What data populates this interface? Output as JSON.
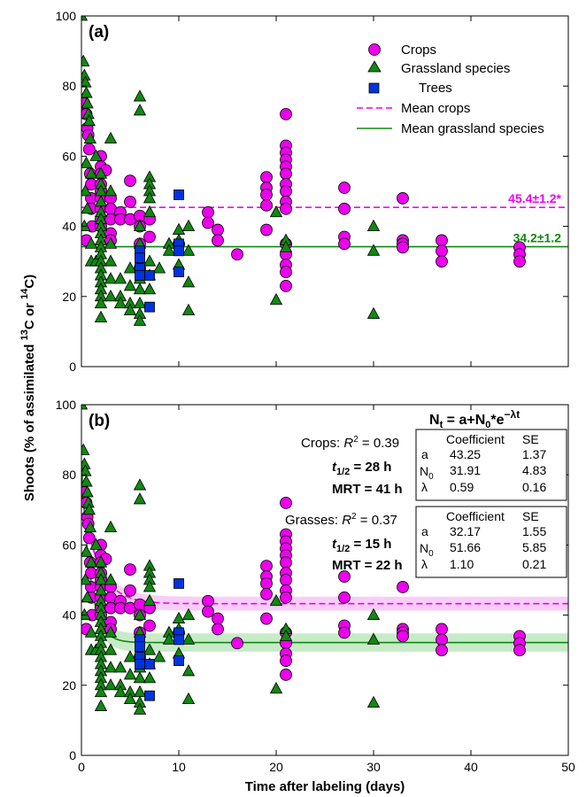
{
  "chart_data": [
    {
      "type": "scatter",
      "panel_label": "(a)",
      "ylabel": "Shoots (% of assimilated 13C or 14C)",
      "xlabel": "",
      "xlim": [
        0,
        50
      ],
      "ylim": [
        0,
        100
      ],
      "xticks": [],
      "yticks": [
        0,
        20,
        40,
        60,
        80,
        100
      ],
      "legend_position": "top-right",
      "legend": [
        {
          "label": "Crops",
          "symbol": "circle",
          "color": "#ee00ee"
        },
        {
          "label": "Grassland species",
          "symbol": "triangle",
          "color": "#118811"
        },
        {
          "label": "Trees",
          "symbol": "square",
          "color": "#0033dd"
        },
        {
          "label": "Mean crops",
          "symbol": "dashed-line",
          "color": "#ee00ee"
        },
        {
          "label": "Mean grassland species",
          "symbol": "solid-line",
          "color": "#118811"
        }
      ],
      "series": [
        {
          "name": "Crops",
          "points": [
            [
              0.3,
              75
            ],
            [
              0.5,
              72
            ],
            [
              0.6,
              68
            ],
            [
              0.7,
              66
            ],
            [
              0.8,
              62
            ],
            [
              0.9,
              55
            ],
            [
              1,
              52
            ],
            [
              1,
              48
            ],
            [
              1,
              45
            ],
            [
              1.1,
              40
            ],
            [
              0.5,
              36
            ],
            [
              2,
              60
            ],
            [
              2,
              57
            ],
            [
              2,
              55
            ],
            [
              2,
              52
            ],
            [
              2,
              50
            ],
            [
              2,
              48
            ],
            [
              2,
              45
            ],
            [
              2,
              42
            ],
            [
              2,
              40
            ],
            [
              2.5,
              56
            ],
            [
              3,
              48
            ],
            [
              3,
              45
            ],
            [
              3,
              42
            ],
            [
              3,
              38
            ],
            [
              3,
              36
            ],
            [
              4,
              44
            ],
            [
              4,
              42
            ],
            [
              5,
              53
            ],
            [
              5,
              47
            ],
            [
              5,
              42
            ],
            [
              6,
              43
            ],
            [
              6,
              40
            ],
            [
              6,
              35
            ],
            [
              6,
              28
            ],
            [
              7,
              42
            ],
            [
              7,
              37
            ],
            [
              10,
              35
            ],
            [
              13,
              44
            ],
            [
              13,
              41
            ],
            [
              14,
              39
            ],
            [
              14,
              36
            ],
            [
              16,
              32
            ],
            [
              19,
              54
            ],
            [
              19,
              51
            ],
            [
              19,
              49
            ],
            [
              19,
              46
            ],
            [
              19,
              39
            ],
            [
              21,
              72
            ],
            [
              21,
              63
            ],
            [
              21,
              61
            ],
            [
              21,
              59
            ],
            [
              21,
              57
            ],
            [
              21,
              55
            ],
            [
              21,
              52
            ],
            [
              21,
              50
            ],
            [
              21,
              47
            ],
            [
              21,
              45
            ],
            [
              21,
              35
            ],
            [
              21,
              32
            ],
            [
              21,
              29
            ],
            [
              21,
              27
            ],
            [
              21,
              23
            ],
            [
              27,
              51
            ],
            [
              27,
              45
            ],
            [
              27,
              37
            ],
            [
              27,
              35
            ],
            [
              33,
              48
            ],
            [
              33,
              36
            ],
            [
              33,
              35
            ],
            [
              33,
              34
            ],
            [
              37,
              36
            ],
            [
              37,
              33
            ],
            [
              37,
              30
            ],
            [
              45,
              34
            ],
            [
              45,
              32
            ],
            [
              45,
              30
            ]
          ]
        },
        {
          "name": "Grassland species",
          "points": [
            [
              0,
              100
            ],
            [
              0.2,
              87
            ],
            [
              0.3,
              83
            ],
            [
              0.4,
              81
            ],
            [
              0.5,
              78
            ],
            [
              0.6,
              75
            ],
            [
              0.7,
              72
            ],
            [
              0.8,
              70
            ],
            [
              0.9,
              65
            ],
            [
              0.5,
              58
            ],
            [
              0.4,
              50
            ],
            [
              0.6,
              45
            ],
            [
              0.3,
              40
            ],
            [
              1,
              55
            ],
            [
              1,
              35
            ],
            [
              1,
              30
            ],
            [
              1.5,
              60
            ],
            [
              1.5,
              30
            ],
            [
              2,
              55
            ],
            [
              2,
              52
            ],
            [
              2,
              50
            ],
            [
              2,
              47
            ],
            [
              2,
              44
            ],
            [
              2,
              42
            ],
            [
              2,
              40
            ],
            [
              2,
              38
            ],
            [
              2,
              36
            ],
            [
              2,
              34
            ],
            [
              2,
              32
            ],
            [
              2,
              30
            ],
            [
              2,
              28
            ],
            [
              2,
              26
            ],
            [
              2,
              24
            ],
            [
              2,
              22
            ],
            [
              2,
              20
            ],
            [
              2,
              18
            ],
            [
              2,
              14
            ],
            [
              3,
              50
            ],
            [
              3,
              35
            ],
            [
              3,
              30
            ],
            [
              3,
              25
            ],
            [
              3,
              20
            ],
            [
              3,
              65
            ],
            [
              4,
              25
            ],
            [
              4,
              20
            ],
            [
              4,
              18
            ],
            [
              5,
              28
            ],
            [
              5,
              23
            ],
            [
              5,
              18
            ],
            [
              5,
              16
            ],
            [
              6,
              77
            ],
            [
              6,
              73
            ],
            [
              6,
              40
            ],
            [
              6,
              35
            ],
            [
              6,
              28
            ],
            [
              6,
              25
            ],
            [
              6,
              22
            ],
            [
              6,
              18
            ],
            [
              6,
              15
            ],
            [
              6,
              13
            ],
            [
              7,
              54
            ],
            [
              7,
              52
            ],
            [
              7,
              50
            ],
            [
              7,
              48
            ],
            [
              7,
              44
            ],
            [
              7,
              30
            ],
            [
              7,
              26
            ],
            [
              7,
              22
            ],
            [
              8,
              28
            ],
            [
              9,
              35
            ],
            [
              9,
              33
            ],
            [
              10,
              36
            ],
            [
              10,
              29
            ],
            [
              10,
              39
            ],
            [
              11,
              40
            ],
            [
              11,
              33
            ],
            [
              11,
              24
            ],
            [
              11,
              16
            ],
            [
              20,
              19
            ],
            [
              20,
              44
            ],
            [
              21,
              36
            ],
            [
              21,
              34
            ],
            [
              30,
              40
            ],
            [
              30,
              33
            ],
            [
              30,
              15
            ]
          ]
        },
        {
          "name": "Trees",
          "points": [
            [
              6,
              33
            ],
            [
              6,
              31
            ],
            [
              6,
              28
            ],
            [
              6,
              26
            ],
            [
              7,
              26
            ],
            [
              7,
              17
            ],
            [
              10,
              49
            ],
            [
              10,
              35
            ],
            [
              10,
              33
            ],
            [
              10,
              27
            ]
          ]
        }
      ],
      "means": [
        {
          "name": "Mean crops",
          "value": 45.4,
          "label": "45.4±1.2*",
          "style": "dashed",
          "color": "#ee00ee"
        },
        {
          "name": "Mean grassland species",
          "value": 34.2,
          "label": "34.2±1.2",
          "style": "solid",
          "color": "#118811"
        }
      ]
    },
    {
      "type": "scatter",
      "panel_label": "(b)",
      "ylabel": "Shoots (% of assimilated 13C or 14C)",
      "xlabel": "Time after labeling (days)",
      "xlim": [
        0,
        50
      ],
      "ylim": [
        0,
        100
      ],
      "xticks": [
        0,
        10,
        20,
        30,
        40,
        50
      ],
      "yticks": [
        0,
        20,
        40,
        60,
        80,
        100
      ],
      "same_points_as_panel": "(a)",
      "equation": "Nt = a+N0*e−λt",
      "fits": [
        {
          "name": "Crops",
          "r2_label": "Crops:",
          "r2": "R2 = 0.39",
          "half_life": "t1/2 = 28 h",
          "mrt": "MRT = 41 h",
          "style": "dashed",
          "color": "#ee00ee",
          "band_color": "#f7c6f7",
          "a": 43.25,
          "N0": 31.91,
          "lambda": 0.59,
          "band_half_width": 2.0,
          "table": {
            "header": [
              "Coefficient",
              "SE"
            ],
            "rows": [
              {
                "param": "a",
                "coef": "43.25",
                "se": "1.37"
              },
              {
                "param": "N0",
                "coef": "31.91",
                "se": "4.83"
              },
              {
                "param": "λ",
                "coef": "0.59",
                "se": "0.16"
              }
            ]
          }
        },
        {
          "name": "Grasses",
          "r2_label": "Grasses:",
          "r2": "R2 = 0.37",
          "half_life": "t1/2 = 15 h",
          "mrt": "MRT = 22 h",
          "style": "solid",
          "color": "#118811",
          "band_color": "#bde8bd",
          "a": 32.17,
          "N0": 51.66,
          "lambda": 1.1,
          "band_half_width": 2.6,
          "table": {
            "header": [
              "Coefficient",
              "SE"
            ],
            "rows": [
              {
                "param": "a",
                "coef": "32.17",
                "se": "1.55"
              },
              {
                "param": "N0",
                "coef": "51.66",
                "se": "5.85"
              },
              {
                "param": "λ",
                "coef": "1.10",
                "se": "0.21"
              }
            ]
          }
        }
      ]
    }
  ]
}
